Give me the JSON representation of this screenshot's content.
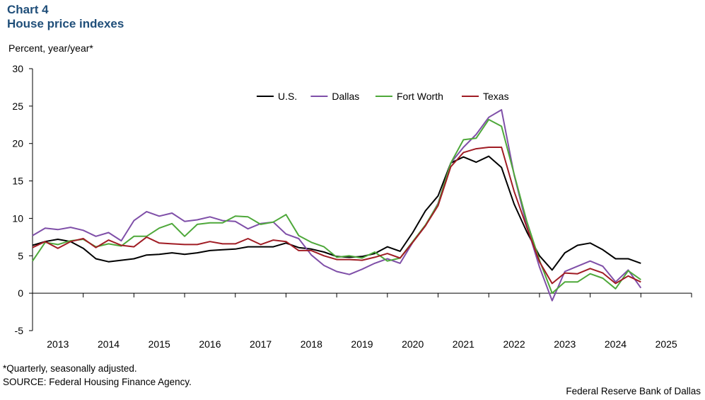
{
  "header": {
    "chart_number": "Chart 4",
    "title": "House price indexes"
  },
  "footer": {
    "footnote": "*Quarterly, seasonally adjusted.",
    "source": "SOURCE: Federal Housing Finance Agency.",
    "credit": "Federal Reserve Bank of Dallas"
  },
  "colors": {
    "us": "#000000",
    "dallas": "#7f4fa8",
    "fort_worth": "#4ea83a",
    "texas": "#a01c24",
    "title": "#1f4e79"
  },
  "chart_data": {
    "type": "line",
    "title": "House price indexes",
    "ylabel": "Percent, year/year*",
    "xlabel": "",
    "ylim": [
      -5,
      30
    ],
    "yticks": [
      -5,
      0,
      5,
      10,
      15,
      20,
      25,
      30
    ],
    "xlim": [
      2013.0,
      2026.0
    ],
    "xtick_labels": [
      "2013",
      "2014",
      "2015",
      "2016",
      "2017",
      "2018",
      "2019",
      "2020",
      "2021",
      "2022",
      "2023",
      "2024",
      "2025"
    ],
    "legend_position": "top-center",
    "frequency": "quarterly",
    "x": [
      2013.0,
      2013.25,
      2013.5,
      2013.75,
      2014.0,
      2014.25,
      2014.5,
      2014.75,
      2015.0,
      2015.25,
      2015.5,
      2015.75,
      2016.0,
      2016.25,
      2016.5,
      2016.75,
      2017.0,
      2017.25,
      2017.5,
      2017.75,
      2018.0,
      2018.25,
      2018.5,
      2018.75,
      2019.0,
      2019.25,
      2019.5,
      2019.75,
      2020.0,
      2020.25,
      2020.5,
      2020.75,
      2021.0,
      2021.25,
      2021.5,
      2021.75,
      2022.0,
      2022.25,
      2022.5,
      2022.75,
      2023.0,
      2023.25,
      2023.5,
      2023.75,
      2024.0,
      2024.25,
      2024.5,
      2024.75,
      2025.0
    ],
    "series": [
      {
        "name": "U.S.",
        "color_key": "us",
        "values": [
          6.4,
          6.9,
          7.2,
          6.9,
          6.0,
          4.6,
          4.2,
          4.4,
          4.6,
          5.1,
          5.2,
          5.4,
          5.2,
          5.4,
          5.7,
          5.8,
          5.9,
          6.2,
          6.2,
          6.2,
          6.7,
          6.1,
          5.9,
          5.5,
          4.9,
          4.8,
          4.9,
          5.3,
          6.2,
          5.6,
          8.1,
          11.0,
          13.0,
          17.4,
          18.2,
          17.5,
          18.3,
          16.8,
          11.9,
          8.2,
          5.0,
          3.1,
          5.4,
          6.4,
          6.7,
          5.8,
          4.6,
          4.6,
          4.0
        ]
      },
      {
        "name": "Dallas",
        "color_key": "dallas",
        "values": [
          7.7,
          8.7,
          8.5,
          8.8,
          8.4,
          7.6,
          8.1,
          7.0,
          9.7,
          10.9,
          10.3,
          10.7,
          9.6,
          9.8,
          10.2,
          9.7,
          9.6,
          8.6,
          9.3,
          9.5,
          7.9,
          7.3,
          5.1,
          3.7,
          2.9,
          2.5,
          3.2,
          4.0,
          4.6,
          4.0,
          6.8,
          9.0,
          12.0,
          17.4,
          19.5,
          21.2,
          23.5,
          24.5,
          15.8,
          9.0,
          3.5,
          -1.0,
          2.9,
          3.6,
          4.3,
          3.6,
          1.5,
          3.1,
          0.7
        ]
      },
      {
        "name": "Fort Worth",
        "color_key": "fort_worth",
        "values": [
          4.3,
          6.8,
          6.5,
          7.0,
          7.2,
          6.2,
          6.6,
          6.3,
          7.6,
          7.6,
          8.7,
          9.3,
          7.6,
          9.2,
          9.4,
          9.4,
          10.3,
          10.2,
          9.2,
          9.5,
          10.5,
          7.7,
          6.8,
          6.2,
          4.8,
          5.0,
          4.7,
          5.5,
          4.3,
          4.7,
          6.9,
          9.1,
          11.9,
          17.4,
          20.5,
          20.7,
          23.2,
          22.3,
          15.9,
          9.6,
          4.4,
          0.0,
          1.5,
          1.5,
          2.6,
          2.0,
          0.6,
          3.0,
          1.8
        ]
      },
      {
        "name": "Texas",
        "color_key": "texas",
        "values": [
          6.1,
          6.9,
          6.0,
          6.9,
          7.3,
          6.1,
          7.1,
          6.4,
          6.2,
          7.5,
          6.7,
          6.6,
          6.5,
          6.5,
          6.9,
          6.6,
          6.6,
          7.3,
          6.5,
          7.1,
          6.9,
          5.7,
          5.7,
          5.0,
          4.5,
          4.5,
          4.4,
          4.8,
          5.3,
          4.7,
          6.8,
          9.0,
          11.7,
          16.9,
          18.8,
          19.3,
          19.5,
          19.5,
          13.6,
          8.8,
          4.2,
          1.3,
          2.7,
          2.6,
          3.3,
          2.7,
          1.3,
          2.3,
          1.5
        ]
      }
    ]
  }
}
